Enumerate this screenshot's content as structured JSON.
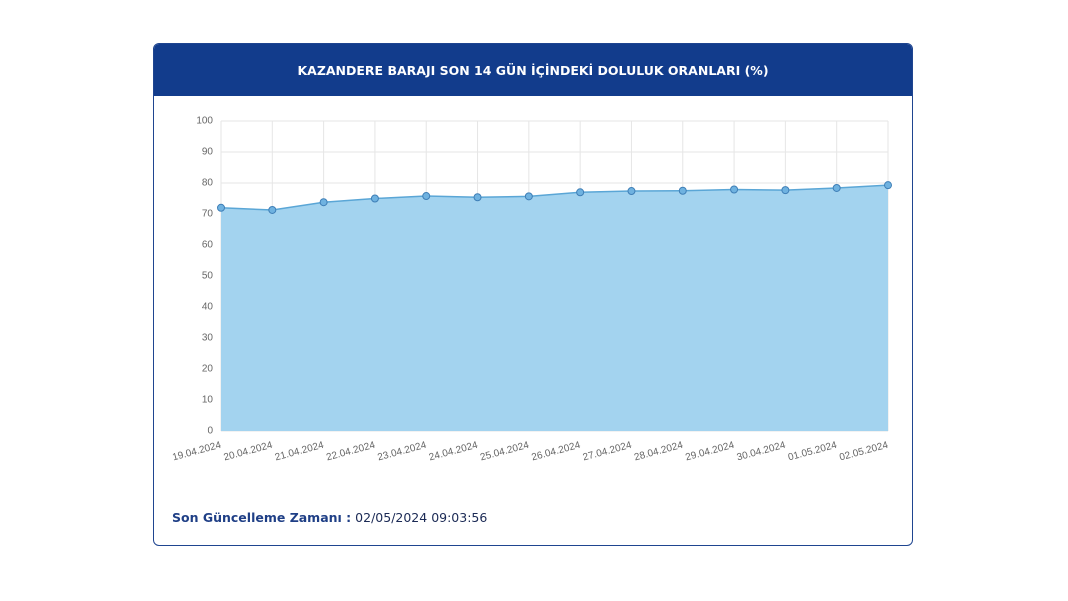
{
  "chart_data": {
    "type": "area",
    "title": "KAZANDERE BARAJI SON 14 GÜN İÇİNDEKİ DOLULUK ORANLARI (%)",
    "categories": [
      "19.04.2024",
      "20.04.2024",
      "21.04.2024",
      "22.04.2024",
      "23.04.2024",
      "24.04.2024",
      "25.04.2024",
      "26.04.2024",
      "27.04.2024",
      "28.04.2024",
      "29.04.2024",
      "30.04.2024",
      "01.05.2024",
      "02.05.2024"
    ],
    "series": [
      {
        "color": "#5aa6d6",
        "values": [
          72,
          71.3,
          73.8,
          75,
          75.8,
          75.4,
          75.7,
          77,
          77.4,
          77.5,
          77.9,
          77.7,
          78.4,
          79.3
        ]
      }
    ],
    "ylim": [
      0,
      100
    ],
    "yticks": [
      0,
      10,
      20,
      30,
      40,
      50,
      60,
      70,
      80,
      90,
      100
    ],
    "grid": true
  },
  "footer": {
    "label": "Son Güncelleme Zamanı :",
    "value": "02/05/2024 09:03:56"
  }
}
